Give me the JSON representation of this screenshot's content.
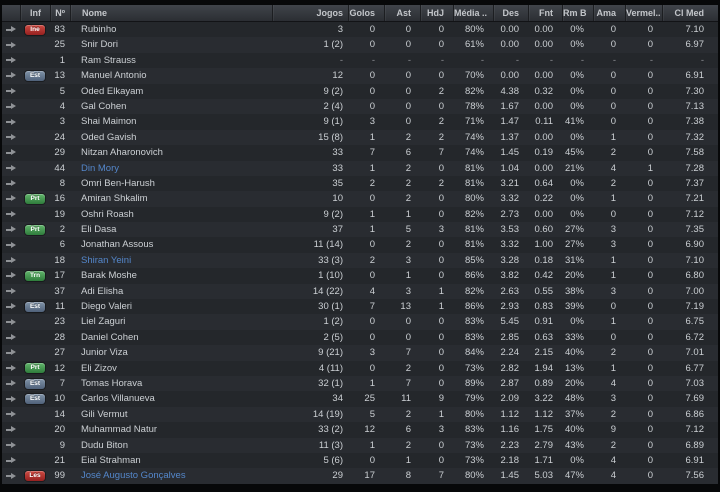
{
  "table": {
    "columns": [
      {
        "key": "arrow",
        "label": ""
      },
      {
        "key": "inf",
        "label": "Inf"
      },
      {
        "key": "num",
        "label": "Nº"
      },
      {
        "key": "name",
        "label": "Nome"
      },
      {
        "key": "jogos",
        "label": "Jogos"
      },
      {
        "key": "golos",
        "label": "Golos"
      },
      {
        "key": "ast",
        "label": "Ast"
      },
      {
        "key": "hdj",
        "label": "HdJ"
      },
      {
        "key": "media",
        "label": "Média .."
      },
      {
        "key": "des",
        "label": "Des"
      },
      {
        "key": "fnt",
        "label": "Fnt"
      },
      {
        "key": "rmb",
        "label": "Rm B"
      },
      {
        "key": "ama",
        "label": "Ama"
      },
      {
        "key": "vermel",
        "label": "Vermel.."
      },
      {
        "key": "clmed",
        "label": "Cl Med"
      }
    ],
    "badge_styles": {
      "Ine": "red",
      "Les": "red",
      "Est": "slate",
      "Prt": "green",
      "Trn": "green"
    },
    "badge_colors": {
      "red": "#b03030",
      "green": "#3f9a4d",
      "slate": "#64788e"
    },
    "name_link_color": "#5487cb",
    "rows": [
      {
        "badge": "Ine",
        "num": "83",
        "name": "Rubinho",
        "blue": false,
        "stats": [
          "3",
          "0",
          "0",
          "0",
          "80%",
          "0.00",
          "0.00",
          "0%",
          "0",
          "0",
          "7.10"
        ]
      },
      {
        "badge": "",
        "num": "25",
        "name": "Snir Dori",
        "blue": false,
        "stats": [
          "1 (2)",
          "0",
          "0",
          "0",
          "61%",
          "0.00",
          "0.00",
          "0%",
          "0",
          "0",
          "6.97"
        ]
      },
      {
        "badge": "",
        "num": "1",
        "name": "Ram Strauss",
        "blue": false,
        "stats": [
          "-",
          "-",
          "-",
          "-",
          "-",
          "-",
          "-",
          "-",
          "-",
          "-",
          "-"
        ]
      },
      {
        "badge": "Est",
        "num": "13",
        "name": "Manuel Antonio",
        "blue": false,
        "stats": [
          "12",
          "0",
          "0",
          "0",
          "70%",
          "0.00",
          "0.00",
          "0%",
          "0",
          "0",
          "6.91"
        ]
      },
      {
        "badge": "",
        "num": "5",
        "name": "Oded Elkayam",
        "blue": false,
        "stats": [
          "9 (2)",
          "0",
          "0",
          "2",
          "82%",
          "4.38",
          "0.32",
          "0%",
          "0",
          "0",
          "7.30"
        ]
      },
      {
        "badge": "",
        "num": "4",
        "name": "Gal Cohen",
        "blue": false,
        "stats": [
          "2 (4)",
          "0",
          "0",
          "0",
          "78%",
          "1.67",
          "0.00",
          "0%",
          "0",
          "0",
          "7.13"
        ]
      },
      {
        "badge": "",
        "num": "3",
        "name": "Shai Maimon",
        "blue": false,
        "stats": [
          "9 (1)",
          "3",
          "0",
          "2",
          "71%",
          "1.47",
          "0.11",
          "41%",
          "0",
          "0",
          "7.38"
        ]
      },
      {
        "badge": "",
        "num": "24",
        "name": "Oded Gavish",
        "blue": false,
        "stats": [
          "15 (8)",
          "1",
          "2",
          "2",
          "74%",
          "1.37",
          "0.00",
          "0%",
          "1",
          "0",
          "7.32"
        ]
      },
      {
        "badge": "",
        "num": "29",
        "name": "Nitzan Aharonovich",
        "blue": false,
        "stats": [
          "33",
          "7",
          "6",
          "7",
          "74%",
          "1.45",
          "0.19",
          "45%",
          "2",
          "0",
          "7.58"
        ]
      },
      {
        "badge": "",
        "num": "44",
        "name": "Din Mory",
        "blue": true,
        "stats": [
          "33",
          "1",
          "2",
          "0",
          "81%",
          "1.04",
          "0.00",
          "21%",
          "4",
          "1",
          "7.28"
        ]
      },
      {
        "badge": "",
        "num": "8",
        "name": "Omri Ben-Harush",
        "blue": false,
        "stats": [
          "35",
          "2",
          "2",
          "2",
          "81%",
          "3.21",
          "0.64",
          "0%",
          "2",
          "0",
          "7.37"
        ]
      },
      {
        "badge": "Prt",
        "num": "16",
        "name": "Amiran Shkalim",
        "blue": false,
        "stats": [
          "10",
          "0",
          "2",
          "0",
          "80%",
          "3.32",
          "0.22",
          "0%",
          "1",
          "0",
          "7.21"
        ]
      },
      {
        "badge": "",
        "num": "19",
        "name": "Oshri Roash",
        "blue": false,
        "stats": [
          "9 (2)",
          "1",
          "1",
          "0",
          "82%",
          "2.73",
          "0.00",
          "0%",
          "0",
          "0",
          "7.12"
        ]
      },
      {
        "badge": "Prt",
        "num": "2",
        "name": "Eli Dasa",
        "blue": false,
        "stats": [
          "37",
          "1",
          "5",
          "3",
          "81%",
          "3.53",
          "0.60",
          "27%",
          "3",
          "0",
          "7.35"
        ]
      },
      {
        "badge": "",
        "num": "6",
        "name": "Jonathan Assous",
        "blue": false,
        "stats": [
          "11 (14)",
          "0",
          "2",
          "0",
          "81%",
          "3.32",
          "1.00",
          "27%",
          "3",
          "0",
          "6.90"
        ]
      },
      {
        "badge": "",
        "num": "18",
        "name": "Shiran Yeini",
        "blue": true,
        "stats": [
          "33 (3)",
          "2",
          "3",
          "0",
          "85%",
          "3.28",
          "0.18",
          "31%",
          "1",
          "0",
          "7.10"
        ]
      },
      {
        "badge": "Trn",
        "num": "17",
        "name": "Barak Moshe",
        "blue": false,
        "stats": [
          "1 (10)",
          "0",
          "1",
          "0",
          "86%",
          "3.82",
          "0.42",
          "20%",
          "1",
          "0",
          "6.80"
        ]
      },
      {
        "badge": "",
        "num": "37",
        "name": "Adi Elisha",
        "blue": false,
        "stats": [
          "14 (22)",
          "4",
          "3",
          "1",
          "82%",
          "2.63",
          "0.55",
          "38%",
          "3",
          "0",
          "7.00"
        ]
      },
      {
        "badge": "Est",
        "num": "11",
        "name": "Diego Valeri",
        "blue": false,
        "stats": [
          "30 (1)",
          "7",
          "13",
          "1",
          "86%",
          "2.93",
          "0.83",
          "39%",
          "0",
          "0",
          "7.19"
        ]
      },
      {
        "badge": "",
        "num": "23",
        "name": "Liel Zaguri",
        "blue": false,
        "stats": [
          "1 (2)",
          "0",
          "0",
          "0",
          "83%",
          "5.45",
          "0.91",
          "0%",
          "1",
          "0",
          "6.75"
        ]
      },
      {
        "badge": "",
        "num": "28",
        "name": "Daniel Cohen",
        "blue": false,
        "stats": [
          "2 (5)",
          "0",
          "0",
          "0",
          "83%",
          "2.85",
          "0.63",
          "33%",
          "0",
          "0",
          "6.72"
        ]
      },
      {
        "badge": "",
        "num": "27",
        "name": "Junior Viza",
        "blue": false,
        "stats": [
          "9 (21)",
          "3",
          "7",
          "0",
          "84%",
          "2.24",
          "2.15",
          "40%",
          "2",
          "0",
          "7.01"
        ]
      },
      {
        "badge": "Prt",
        "num": "12",
        "name": "Eli Zizov",
        "blue": false,
        "stats": [
          "4 (11)",
          "0",
          "2",
          "0",
          "73%",
          "2.82",
          "1.94",
          "13%",
          "1",
          "0",
          "6.77"
        ]
      },
      {
        "badge": "Est",
        "num": "7",
        "name": "Tomas Horava",
        "blue": false,
        "stats": [
          "32 (1)",
          "1",
          "7",
          "0",
          "89%",
          "2.87",
          "0.89",
          "20%",
          "4",
          "0",
          "7.03"
        ]
      },
      {
        "badge": "Est",
        "num": "10",
        "name": "Carlos Villanueva",
        "blue": false,
        "stats": [
          "34",
          "25",
          "11",
          "9",
          "79%",
          "2.09",
          "3.22",
          "48%",
          "3",
          "0",
          "7.69"
        ]
      },
      {
        "badge": "",
        "num": "14",
        "name": "Gili Vermut",
        "blue": false,
        "stats": [
          "14 (19)",
          "5",
          "2",
          "1",
          "80%",
          "1.12",
          "1.12",
          "37%",
          "2",
          "0",
          "6.86"
        ]
      },
      {
        "badge": "",
        "num": "20",
        "name": "Muhammad Natur",
        "blue": false,
        "stats": [
          "33 (2)",
          "12",
          "6",
          "3",
          "83%",
          "1.16",
          "1.75",
          "40%",
          "9",
          "0",
          "7.12"
        ]
      },
      {
        "badge": "",
        "num": "9",
        "name": "Dudu Biton",
        "blue": false,
        "stats": [
          "11 (3)",
          "1",
          "2",
          "0",
          "73%",
          "2.23",
          "2.79",
          "43%",
          "2",
          "0",
          "6.89"
        ]
      },
      {
        "badge": "",
        "num": "21",
        "name": "Eial Strahman",
        "blue": false,
        "stats": [
          "5 (6)",
          "0",
          "1",
          "0",
          "73%",
          "2.18",
          "1.71",
          "0%",
          "4",
          "0",
          "6.91"
        ]
      },
      {
        "badge": "Les",
        "num": "99",
        "name": "José Augusto Gonçalves",
        "blue": true,
        "stats": [
          "29",
          "17",
          "8",
          "7",
          "80%",
          "1.45",
          "5.03",
          "47%",
          "4",
          "0",
          "7.56"
        ]
      }
    ]
  }
}
